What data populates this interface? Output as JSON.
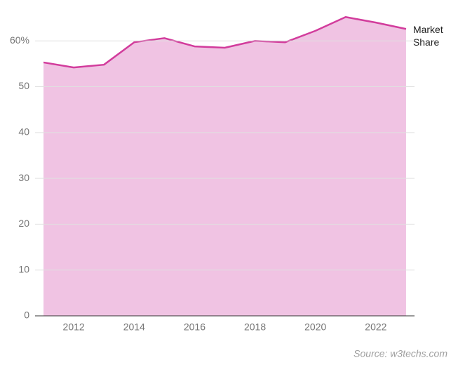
{
  "chart_data": {
    "type": "area",
    "x": [
      2011,
      2012,
      2013,
      2014,
      2015,
      2016,
      2017,
      2018,
      2019,
      2020,
      2021,
      2022,
      2023
    ],
    "series": [
      {
        "name": "Market Share",
        "color": "#d23c9c",
        "fill": "#f0c3e3",
        "values": [
          55.3,
          54.2,
          54.8,
          59.7,
          60.6,
          58.8,
          58.5,
          60.0,
          59.7,
          62.2,
          65.2,
          64.0,
          62.6
        ]
      }
    ],
    "xlim": [
      2010.72,
      2023.28
    ],
    "xticks": [
      2012,
      2014,
      2016,
      2018,
      2020,
      2022
    ],
    "ylim": [
      0,
      68
    ],
    "yticks": [
      0,
      10,
      20,
      30,
      40,
      50,
      {
        "value": 60,
        "label": "60%"
      }
    ],
    "grid": true,
    "source": "Source: w3techs.com"
  }
}
